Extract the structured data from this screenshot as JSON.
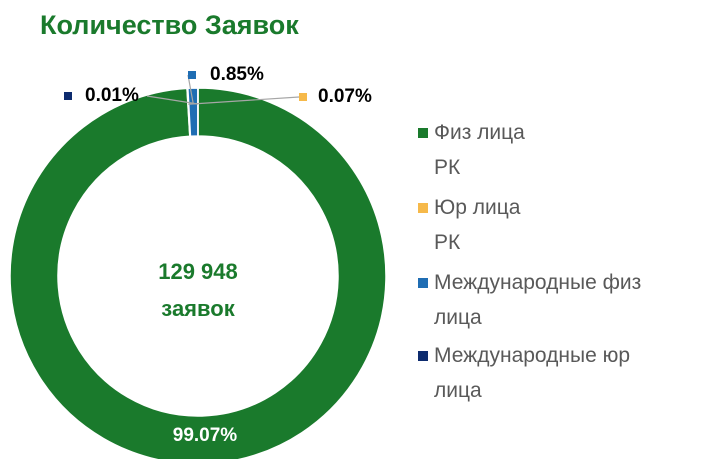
{
  "chart_data": {
    "type": "donut",
    "title": "Количество Заявок",
    "center_text": [
      "129 948",
      "заявок"
    ],
    "categories": [
      "Физ лица РК",
      "Юр лица РК",
      "Международные физ лица",
      "Международные юр лица"
    ],
    "values": [
      99.07,
      0.07,
      0.85,
      0.01
    ],
    "value_labels": [
      "99.07%",
      "0.07%",
      "0.85%",
      "0.01%"
    ],
    "colors": [
      "#1a7a2c",
      "#f6b94a",
      "#1f6db3",
      "#0d2b6e"
    ],
    "legend": "right"
  }
}
